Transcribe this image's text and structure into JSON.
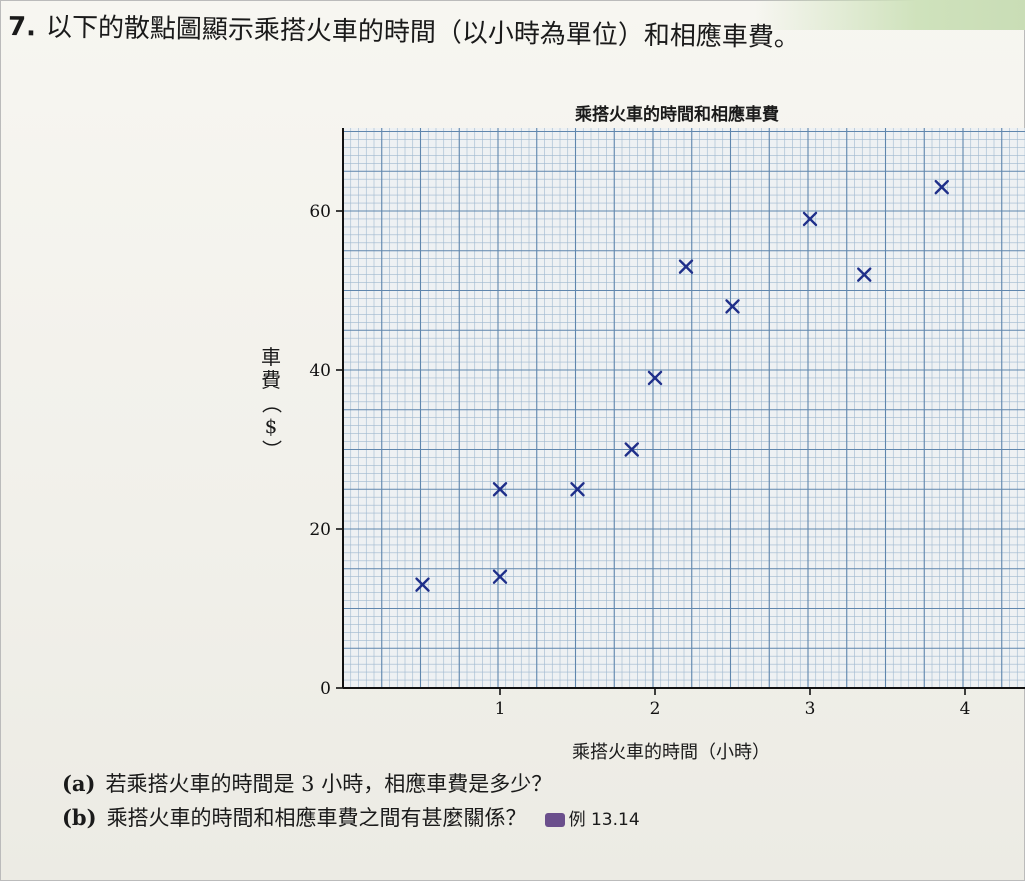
{
  "question": {
    "number": "7.",
    "text": "以下的散點圖顯示乘搭火車的時間（以小時為單位）和相應車費。"
  },
  "chart_data": {
    "type": "scatter",
    "title": "乘搭火車的時間和相應車費",
    "xlabel": "乘搭火車的時間（小時）",
    "ylabel": "車費（$）",
    "xlim": [
      0,
      4.4
    ],
    "ylim": [
      0,
      70
    ],
    "xticks": [
      "1",
      "2",
      "3",
      "4"
    ],
    "yticks": [
      "0",
      "20",
      "40",
      "60"
    ],
    "grid": true,
    "marker": "x",
    "marker_color": "#1f2f8a",
    "points": [
      {
        "x": 0.5,
        "y": 13
      },
      {
        "x": 1.0,
        "y": 14
      },
      {
        "x": 1.0,
        "y": 25
      },
      {
        "x": 1.5,
        "y": 25
      },
      {
        "x": 1.85,
        "y": 30
      },
      {
        "x": 2.0,
        "y": 39
      },
      {
        "x": 2.2,
        "y": 53
      },
      {
        "x": 2.5,
        "y": 48
      },
      {
        "x": 3.0,
        "y": 59
      },
      {
        "x": 3.35,
        "y": 52
      },
      {
        "x": 3.85,
        "y": 63
      }
    ]
  },
  "parts": [
    {
      "label": "(a)",
      "text": "若乘搭火車的時間是 3 小時，相應車費是多少？"
    },
    {
      "label": "(b)",
      "text": "乘搭火車的時間和相應車費之間有甚麼關係？",
      "reference": "例 13.14"
    }
  ]
}
